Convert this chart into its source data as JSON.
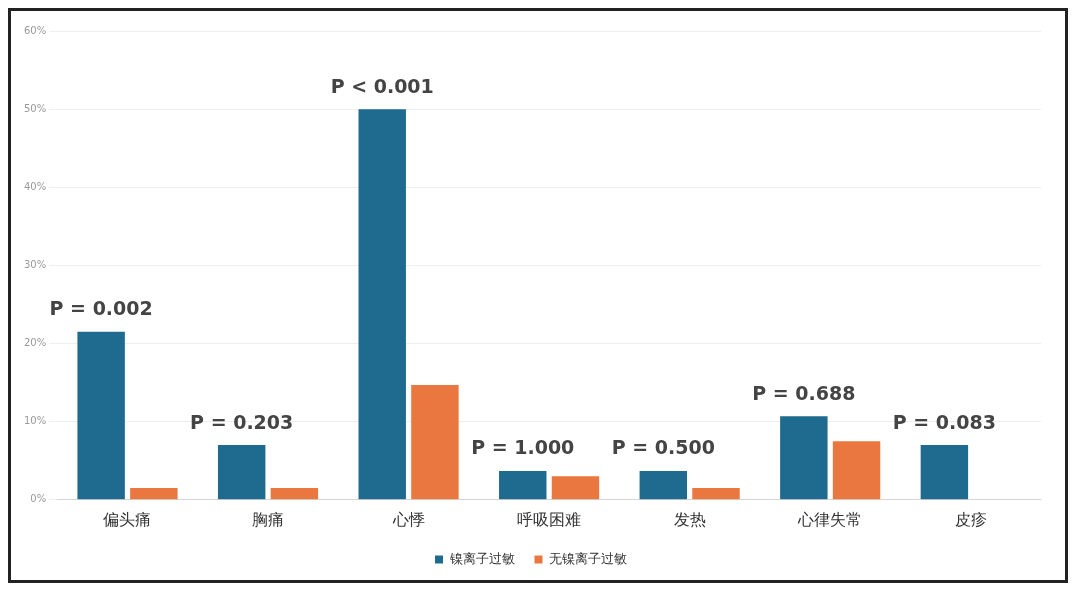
{
  "chart_data": {
    "type": "bar",
    "categories": [
      "偏头痛",
      "胸痛",
      "心悸",
      "呼吸困难",
      "发热",
      "心律失常",
      "皮疹"
    ],
    "series": [
      {
        "name": "镍离子过敏",
        "color": "#1f6a8f",
        "values": [
          21.5,
          7,
          50,
          3.7,
          3.7,
          10.7,
          7
        ]
      },
      {
        "name": "无镍离子过敏",
        "color": "#ea773f",
        "values": [
          1.5,
          1.5,
          14.7,
          3,
          1.5,
          7.5,
          null
        ]
      }
    ],
    "ylim": [
      0,
      60
    ],
    "yticks": [
      {
        "value": 0,
        "label": "0%"
      },
      {
        "value": 10,
        "label": "10%"
      },
      {
        "value": 20,
        "label": "20%"
      },
      {
        "value": 30,
        "label": "30%"
      },
      {
        "value": 40,
        "label": "40%"
      },
      {
        "value": 50,
        "label": "50%"
      },
      {
        "value": 60,
        "label": "60%"
      }
    ],
    "grid": "y",
    "legend": "bottom",
    "annotations": [
      {
        "text": "P = 0.002",
        "x": "偏头痛",
        "y": 21.5
      },
      {
        "text": "P = 0.203",
        "x": "胸痛",
        "y": 7
      },
      {
        "text": "P < 0.001",
        "x": "心悸",
        "y": 50
      },
      {
        "text": "P = 1.000",
        "x": "呼吸困难",
        "y": 3.7
      },
      {
        "text": "P = 0.500",
        "x": "发热",
        "y": 3.7
      },
      {
        "text": "P = 0.688",
        "x": "心律失常",
        "y": 10.7
      },
      {
        "text": "P = 0.083",
        "x": "皮疹",
        "y": 7
      }
    ]
  }
}
